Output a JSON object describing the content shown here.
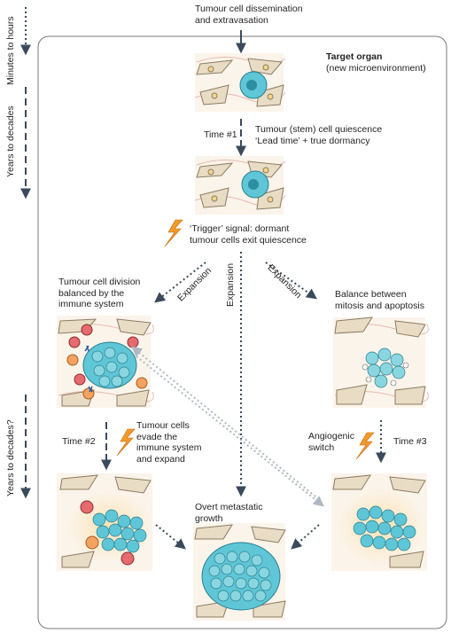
{
  "left_axis": {
    "top_label": "Minutes to hours",
    "middle_label": "Years to decades",
    "bottom_label": "Years to decades?"
  },
  "header": {
    "dissemination": "Tumour cell dissemination\nand extravasation",
    "target_title": "Target organ",
    "target_sub": "(new microenvironment)"
  },
  "steps": {
    "time1": "Time #1",
    "quiescence": "Tumour (stem) cell quiescence\n‘Lead time’ + true dormancy",
    "trigger": "‘Trigger’ signal: dormant\ntumour cells exit quiescence",
    "expansion": "Expansion",
    "left_branch": "Tumour cell division\nbalanced by the\nimmune system",
    "right_branch": "Balance between\nmitosis and apoptosis",
    "time2": "Time #2",
    "evade": "Tumour cells\nevade the\nimmune system\nand expand",
    "angiogenic": "Angiogenic\nswitch",
    "time3": "Time #3",
    "overt": "Overt metastatic\ngrowth"
  },
  "colors": {
    "frame": "#7a7a7a",
    "arrow": "#3a4a5c",
    "tumour": "#5ec6d6",
    "stroma": "#e9dcc4",
    "bolt": "#f39a2b",
    "immune_orange": "#f4a261",
    "immune_red": "#e56b6f"
  },
  "icons": [
    "lightning-icon"
  ]
}
